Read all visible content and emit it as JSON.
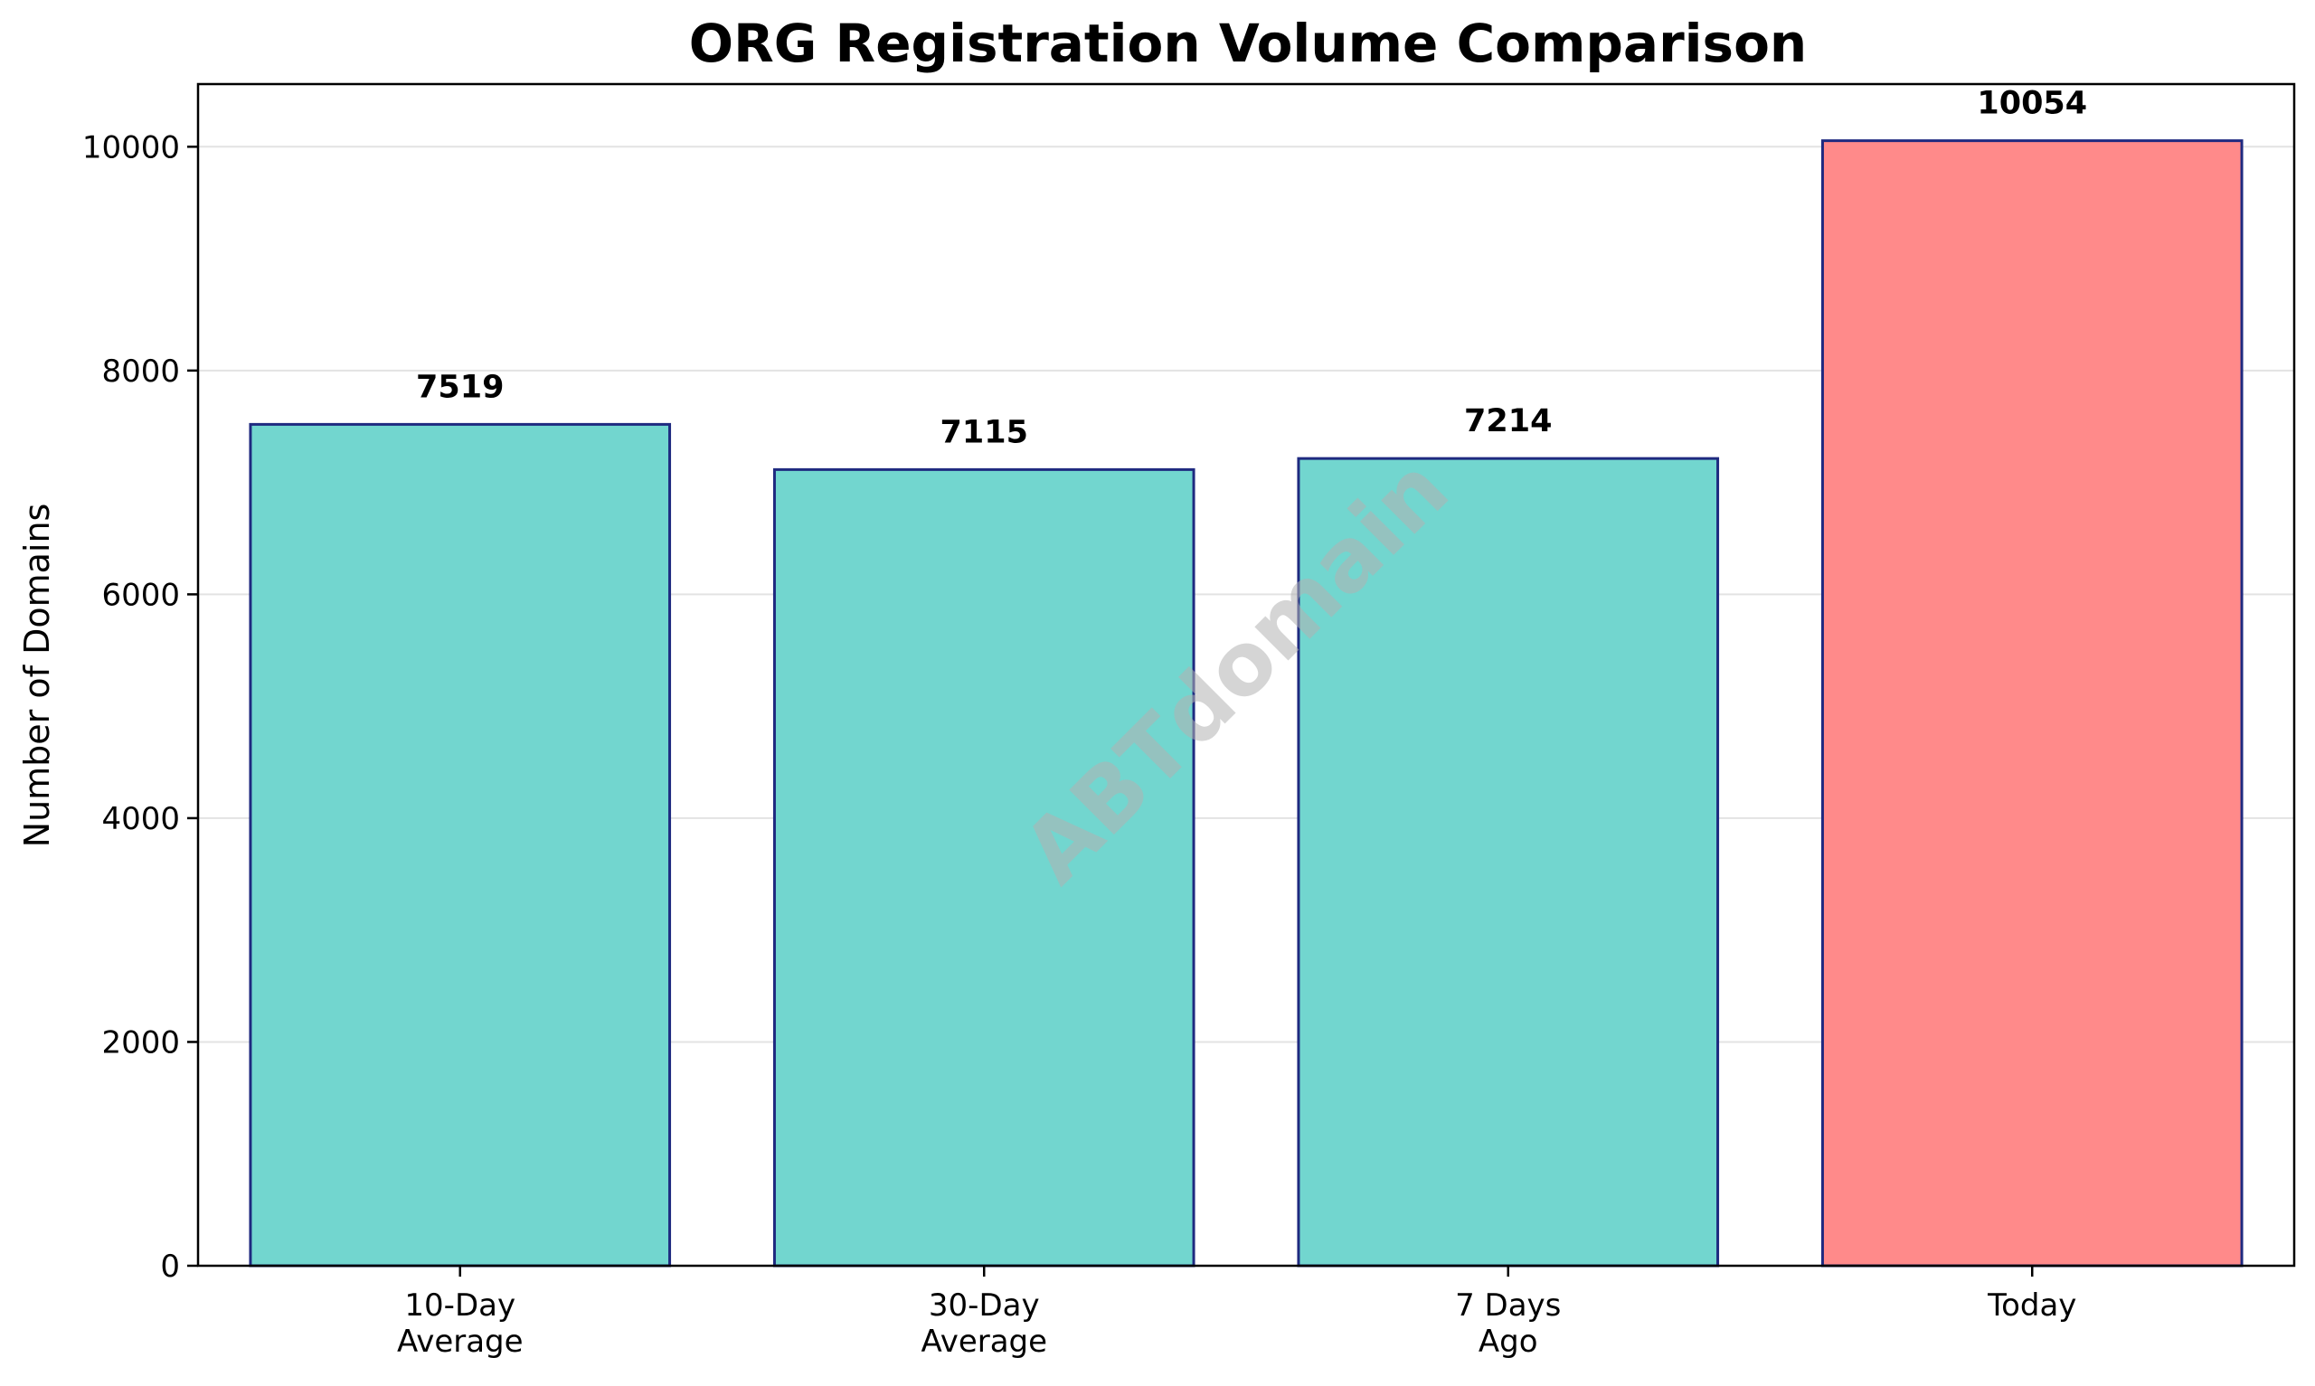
{
  "chart_data": {
    "type": "bar",
    "title": "ORG Registration Volume Comparison",
    "xlabel": "",
    "ylabel": "Number of Domains",
    "categories": [
      [
        "10-Day",
        "Average"
      ],
      [
        "30-Day",
        "Average"
      ],
      [
        "7 Days",
        "Ago"
      ],
      [
        "Today"
      ]
    ],
    "values": [
      7519,
      7115,
      7214,
      10054
    ],
    "data_labels": [
      "7519",
      "7115",
      "7214",
      "10054"
    ],
    "bar_colors": [
      "#72d6cf",
      "#72d6cf",
      "#72d6cf",
      "#ff8a8a"
    ],
    "bar_edge_color": "#1f2a80",
    "ylim": [
      0,
      10560
    ],
    "yticks": [
      0,
      2000,
      4000,
      6000,
      8000,
      10000
    ],
    "ytick_labels": [
      "0",
      "2000",
      "4000",
      "6000",
      "8000",
      "10000"
    ],
    "grid": "horizontal",
    "legend": "none",
    "watermark": "ABTdomain"
  }
}
